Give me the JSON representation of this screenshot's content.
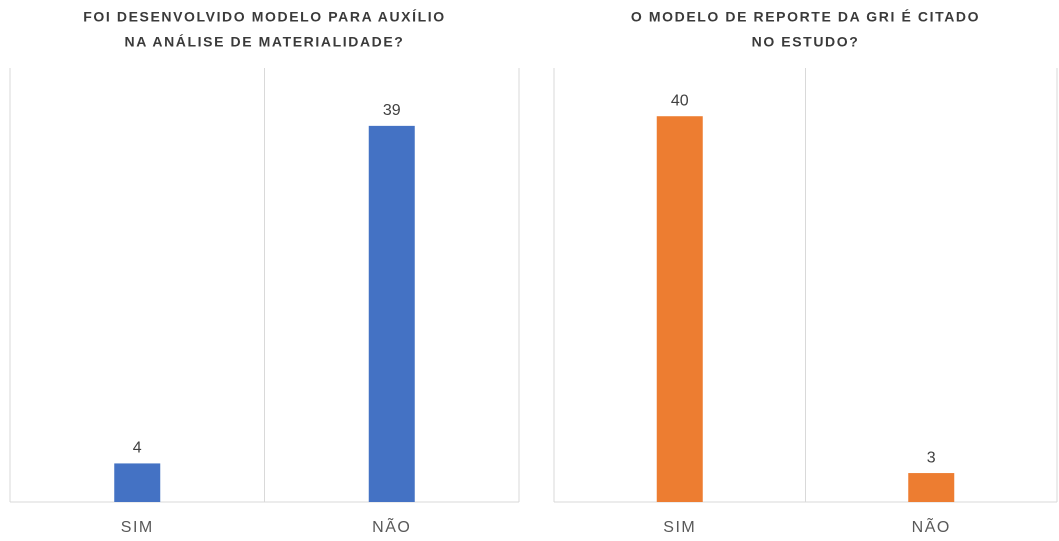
{
  "chart_data": [
    {
      "type": "bar",
      "title": [
        "FOI DESENVOLVIDO MODELO PARA AUXÍLIO",
        "NA ANÁLISE DE MATERIALIDADE?"
      ],
      "categories": [
        "SIM",
        "NÃO"
      ],
      "values": [
        4,
        39
      ],
      "color": "#4472c4",
      "ylim": [
        0,
        45
      ]
    },
    {
      "type": "bar",
      "title": [
        "O MODELO DE REPORTE DA GRI É CITADO",
        "NO ESTUDO?"
      ],
      "categories": [
        "SIM",
        "NÃO"
      ],
      "values": [
        40,
        3
      ],
      "color": "#ed7d31",
      "ylim": [
        0,
        45
      ]
    }
  ]
}
